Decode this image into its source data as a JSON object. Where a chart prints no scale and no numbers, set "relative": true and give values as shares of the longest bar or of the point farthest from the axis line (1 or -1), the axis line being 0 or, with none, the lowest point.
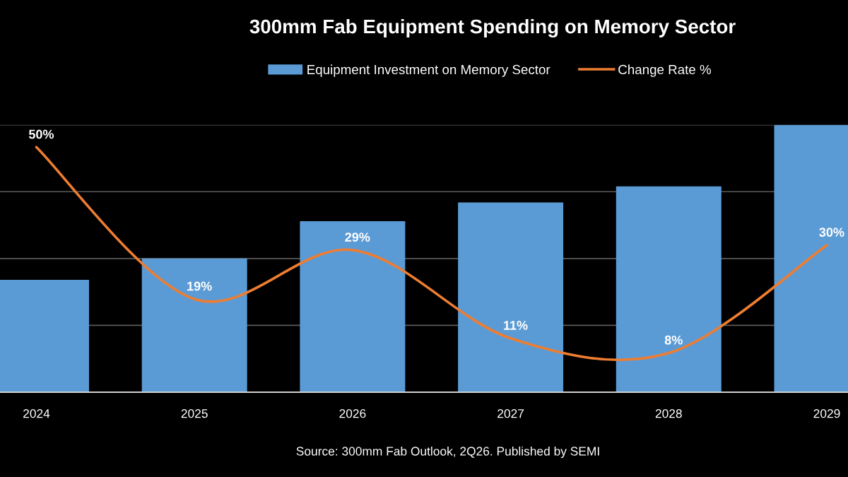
{
  "chart_data": [
    {
      "type": "bar",
      "title": "300mm Fab Equipment Spending on Memory Sector",
      "categories": [
        "2024",
        "2025",
        "2026",
        "2027",
        "2028",
        "2029"
      ],
      "relative": true,
      "series": [
        {
          "name": "Equipment Investment on Memory Sector",
          "color": "#5b9bd5",
          "values": [
            0.42,
            0.5,
            0.64,
            0.71,
            0.77,
            1
          ]
        }
      ],
      "annotations": [
        "Source: 300mm Fab Outlook, 2Q26. Published by SEMI"
      ],
      "legend": "top",
      "grid": "y",
      "tick_labels": "x"
    },
    {
      "type": "line",
      "categories": [
        "2024",
        "2025",
        "2026",
        "2027",
        "2028",
        "2029"
      ],
      "series": [
        {
          "name": "Change Rate %",
          "color": "#ed7d31",
          "line_style": "solid",
          "values": [
            50,
            19,
            29,
            11,
            8,
            30
          ],
          "value_labels": [
            "50%",
            "19%",
            "29%",
            "11%",
            "8%",
            "30%"
          ]
        }
      ],
      "legend": "top",
      "tick_labels": false
    }
  ]
}
